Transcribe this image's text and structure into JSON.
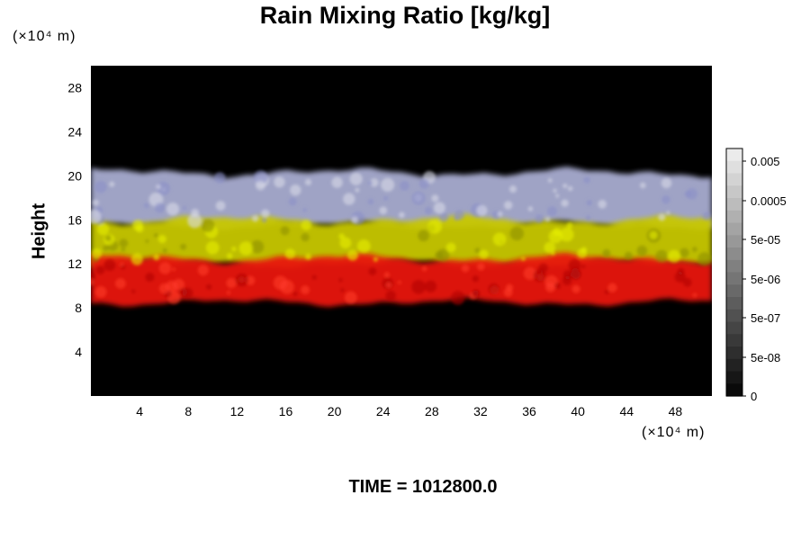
{
  "chart_data": {
    "type": "heatmap",
    "title": "Rain Mixing Ratio [kg/kg]",
    "ylabel": "Height",
    "xunit": "(×10⁴ m)",
    "yunit": "(×10⁴ m)",
    "footer": "TIME = 1012800.0",
    "x_ticks": [
      4,
      8,
      12,
      16,
      20,
      24,
      28,
      32,
      36,
      40,
      44,
      48
    ],
    "y_ticks": [
      4,
      8,
      12,
      16,
      20,
      24,
      28
    ],
    "xlim": [
      0,
      51
    ],
    "ylim": [
      0,
      30
    ],
    "colorbar_labels": [
      "0.005",
      "0.0005",
      "5e-05",
      "5e-06",
      "5e-07",
      "5e-08",
      "0"
    ],
    "layers": [
      {
        "name": "red",
        "y_range": [
          8.5,
          12.5
        ],
        "color": "#e8140c"
      },
      {
        "name": "yellow",
        "y_range": [
          12.0,
          16.0
        ],
        "color": "#c8c800"
      },
      {
        "name": "lavender",
        "y_range": [
          15.5,
          20.3
        ],
        "color": "#a8acd0"
      }
    ],
    "background_color": "#000000"
  }
}
